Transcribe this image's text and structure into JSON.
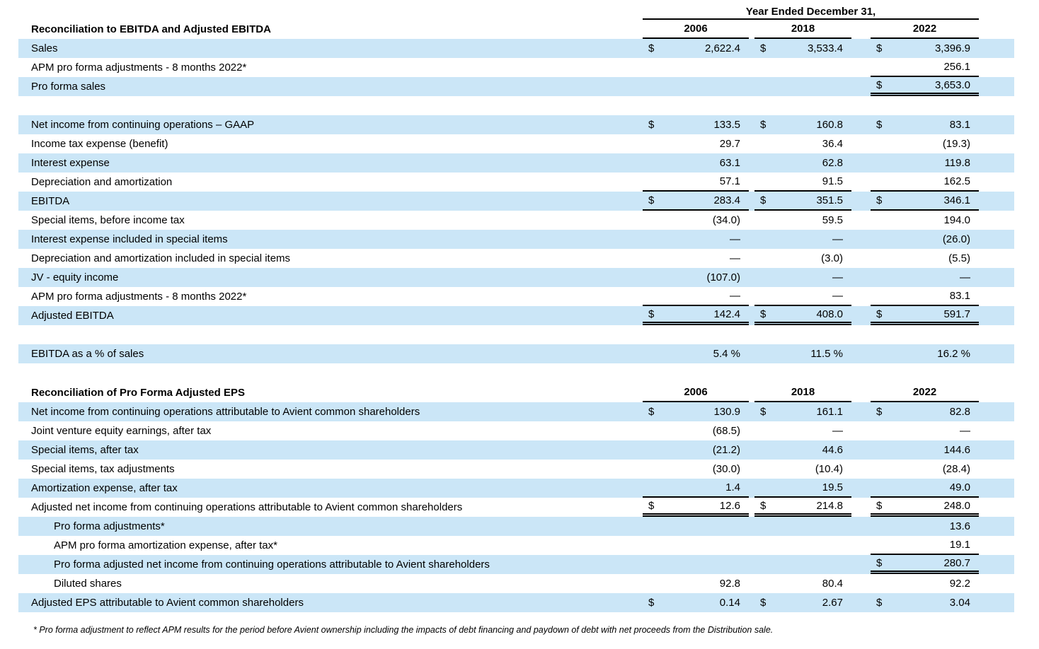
{
  "page": {
    "stripe_color": "#cbe6f7",
    "currency_symbol": "$",
    "footnote": "* Pro forma adjustment to reflect APM results for the period before Avient ownership including the impacts of debt financing and paydown of debt with net proceeds from the Distribution sale."
  },
  "tables": [
    {
      "id": "ebitda",
      "title": "Reconciliation to EBITDA and Adjusted EBITDA",
      "spanner": "Year Ended December 31,",
      "years": [
        "2006",
        "2018",
        "2022"
      ],
      "rows": [
        {
          "label": "Sales",
          "dollars": [
            1,
            1,
            1
          ],
          "values": [
            "2,622.4",
            "3,533.4",
            "3,396.9"
          ]
        },
        {
          "label": "APM pro forma adjustments - 8 months 2022*",
          "dollars": [
            0,
            0,
            0
          ],
          "values": [
            "",
            "",
            "256.1"
          ],
          "rule_bottom": [
            2
          ]
        },
        {
          "label": "Pro forma sales",
          "dollars": [
            0,
            0,
            1
          ],
          "values": [
            "",
            "",
            "3,653.0"
          ],
          "rule_double": [
            2
          ]
        },
        {
          "spacer": true
        },
        {
          "label": "Net income from continuing operations – GAAP",
          "dollars": [
            1,
            1,
            1
          ],
          "values": [
            "133.5",
            "160.8",
            "83.1"
          ]
        },
        {
          "label": "Income tax expense (benefit)",
          "dollars": [
            0,
            0,
            0
          ],
          "values": [
            "29.7",
            "36.4",
            "(19.3)"
          ]
        },
        {
          "label": "Interest expense",
          "dollars": [
            0,
            0,
            0
          ],
          "values": [
            "63.1",
            "62.8",
            "119.8"
          ]
        },
        {
          "label": "Depreciation and amortization",
          "dollars": [
            0,
            0,
            0
          ],
          "values": [
            "57.1",
            "91.5",
            "162.5"
          ],
          "rule_bottom": [
            0,
            1,
            2
          ]
        },
        {
          "label": "EBITDA",
          "dollars": [
            1,
            1,
            1
          ],
          "values": [
            "283.4",
            "351.5",
            "346.1"
          ],
          "rule_bottom": [
            0,
            1,
            2
          ]
        },
        {
          "label": "Special items, before income tax",
          "dollars": [
            0,
            0,
            0
          ],
          "values": [
            "(34.0)",
            "59.5",
            "194.0"
          ]
        },
        {
          "label": "Interest expense included in special items",
          "dollars": [
            0,
            0,
            0
          ],
          "values": [
            "—",
            "—",
            "(26.0)"
          ]
        },
        {
          "label": "Depreciation and amortization included in special items",
          "dollars": [
            0,
            0,
            0
          ],
          "values": [
            "—",
            "(3.0)",
            "(5.5)"
          ]
        },
        {
          "label": "JV - equity income",
          "dollars": [
            0,
            0,
            0
          ],
          "values": [
            "(107.0)",
            "—",
            "—"
          ]
        },
        {
          "label": "APM pro forma adjustments - 8 months 2022*",
          "dollars": [
            0,
            0,
            0
          ],
          "values": [
            "—",
            "—",
            "83.1"
          ],
          "rule_bottom": [
            0,
            1,
            2
          ]
        },
        {
          "label": "Adjusted EBITDA",
          "dollars": [
            1,
            1,
            1
          ],
          "values": [
            "142.4",
            "408.0",
            "591.7"
          ],
          "rule_double": [
            0,
            1,
            2
          ]
        },
        {
          "spacer": true
        },
        {
          "label": "EBITDA as a % of sales",
          "dollars": [
            0,
            0,
            0
          ],
          "values": [
            "5.4 %",
            "11.5 %",
            "16.2 %"
          ]
        }
      ]
    },
    {
      "id": "eps",
      "title": "Reconciliation of Pro Forma Adjusted EPS",
      "spanner": null,
      "years": [
        "2006",
        "2018",
        "2022"
      ],
      "rows": [
        {
          "label": "Net income from continuing operations attributable to Avient common shareholders",
          "dollars": [
            1,
            1,
            1
          ],
          "values": [
            "130.9",
            "161.1",
            "82.8"
          ]
        },
        {
          "label": "Joint venture equity earnings, after tax",
          "dollars": [
            0,
            0,
            0
          ],
          "values": [
            "(68.5)",
            "—",
            "—"
          ]
        },
        {
          "label": "Special items, after tax",
          "dollars": [
            0,
            0,
            0
          ],
          "values": [
            "(21.2)",
            "44.6",
            "144.6"
          ]
        },
        {
          "label": "Special items, tax adjustments",
          "dollars": [
            0,
            0,
            0
          ],
          "values": [
            "(30.0)",
            "(10.4)",
            "(28.4)"
          ]
        },
        {
          "label": "Amortization expense, after tax",
          "dollars": [
            0,
            0,
            0
          ],
          "values": [
            "1.4",
            "19.5",
            "49.0"
          ],
          "rule_bottom": [
            0,
            1,
            2
          ]
        },
        {
          "label": "Adjusted net income from continuing operations attributable to Avient common shareholders",
          "dollars": [
            1,
            1,
            1
          ],
          "values": [
            "12.6",
            "214.8",
            "248.0"
          ],
          "rule_double": [
            0,
            1,
            2
          ]
        },
        {
          "label": "Pro forma adjustments*",
          "indent": 1,
          "dollars": [
            0,
            0,
            0
          ],
          "values": [
            "",
            "",
            "13.6"
          ]
        },
        {
          "label": "APM pro forma amortization expense, after tax*",
          "indent": 1,
          "dollars": [
            0,
            0,
            0
          ],
          "values": [
            "",
            "",
            "19.1"
          ],
          "rule_bottom": [
            2
          ]
        },
        {
          "label": "Pro forma adjusted net income from continuing operations attributable to Avient shareholders",
          "indent": 1,
          "dollars": [
            0,
            0,
            1
          ],
          "values": [
            "",
            "",
            "280.7"
          ],
          "rule_double": [
            2
          ]
        },
        {
          "label": "Diluted shares",
          "indent": 1,
          "dollars": [
            0,
            0,
            0
          ],
          "values": [
            "92.8",
            "80.4",
            "92.2"
          ]
        },
        {
          "label": "Adjusted EPS attributable to Avient common shareholders",
          "dollars": [
            1,
            1,
            1
          ],
          "values": [
            "0.14",
            "2.67",
            "3.04"
          ]
        }
      ]
    }
  ]
}
